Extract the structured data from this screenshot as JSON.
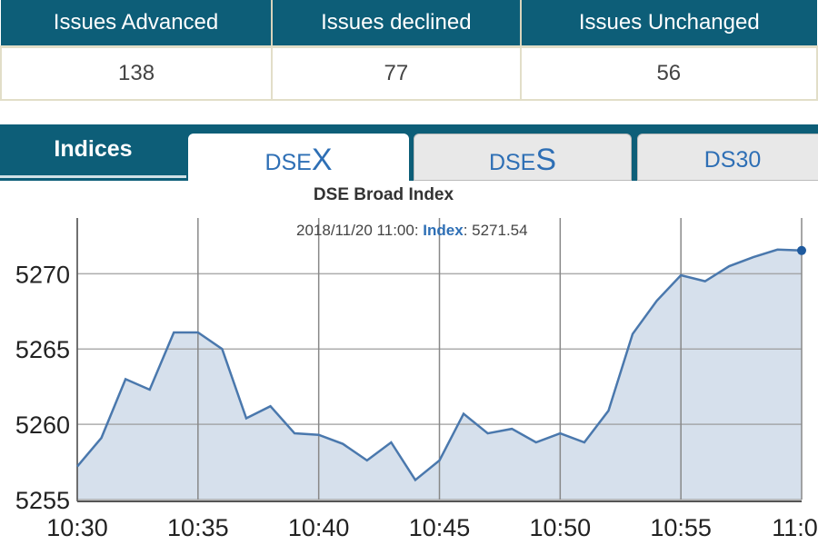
{
  "stats": {
    "headers": [
      "Issues Advanced",
      "Issues declined",
      "Issues Unchanged"
    ],
    "values": [
      "138",
      "77",
      "56"
    ]
  },
  "tabs": {
    "section_label": "Indices",
    "items": [
      {
        "prefix": "DSE",
        "suffix": "X",
        "active": true
      },
      {
        "prefix": "DSE",
        "suffix": "S",
        "active": false
      },
      {
        "prefix": "DS30",
        "suffix": "",
        "active": false
      }
    ]
  },
  "colors": {
    "header": "#0d5e78",
    "line": "#4a78ad",
    "fill": "#d6e0ec"
  },
  "chart_data": {
    "type": "area",
    "title": "DSE Broad Index",
    "tooltip": {
      "date": "2018/11/20 11:00:",
      "series": "Index",
      "sep": ":",
      "value": "5271.54"
    },
    "x": [
      "10:30",
      "10:31",
      "10:32",
      "10:33",
      "10:34",
      "10:35",
      "10:36",
      "10:37",
      "10:38",
      "10:39",
      "10:40",
      "10:41",
      "10:42",
      "10:43",
      "10:44",
      "10:45",
      "10:46",
      "10:47",
      "10:48",
      "10:49",
      "10:50",
      "10:51",
      "10:52",
      "10:53",
      "10:54",
      "10:55",
      "10:56",
      "10:57",
      "10:58",
      "10:59",
      "11:00"
    ],
    "values": [
      5257.2,
      5259.1,
      5263.0,
      5262.3,
      5266.1,
      5266.1,
      5265.0,
      5260.4,
      5261.2,
      5259.4,
      5259.3,
      5258.7,
      5257.6,
      5258.8,
      5256.3,
      5257.6,
      5260.7,
      5259.4,
      5259.7,
      5258.8,
      5259.4,
      5258.8,
      5260.9,
      5266.0,
      5268.2,
      5269.9,
      5269.5,
      5270.5,
      5271.1,
      5271.6,
      5271.54
    ],
    "xticks": [
      "10:30",
      "10:35",
      "10:40",
      "10:45",
      "10:50",
      "10:55",
      "11:00"
    ],
    "yticks": [
      5255,
      5260,
      5265,
      5270
    ],
    "ylim": [
      5255,
      5273.7
    ],
    "grid": true
  }
}
